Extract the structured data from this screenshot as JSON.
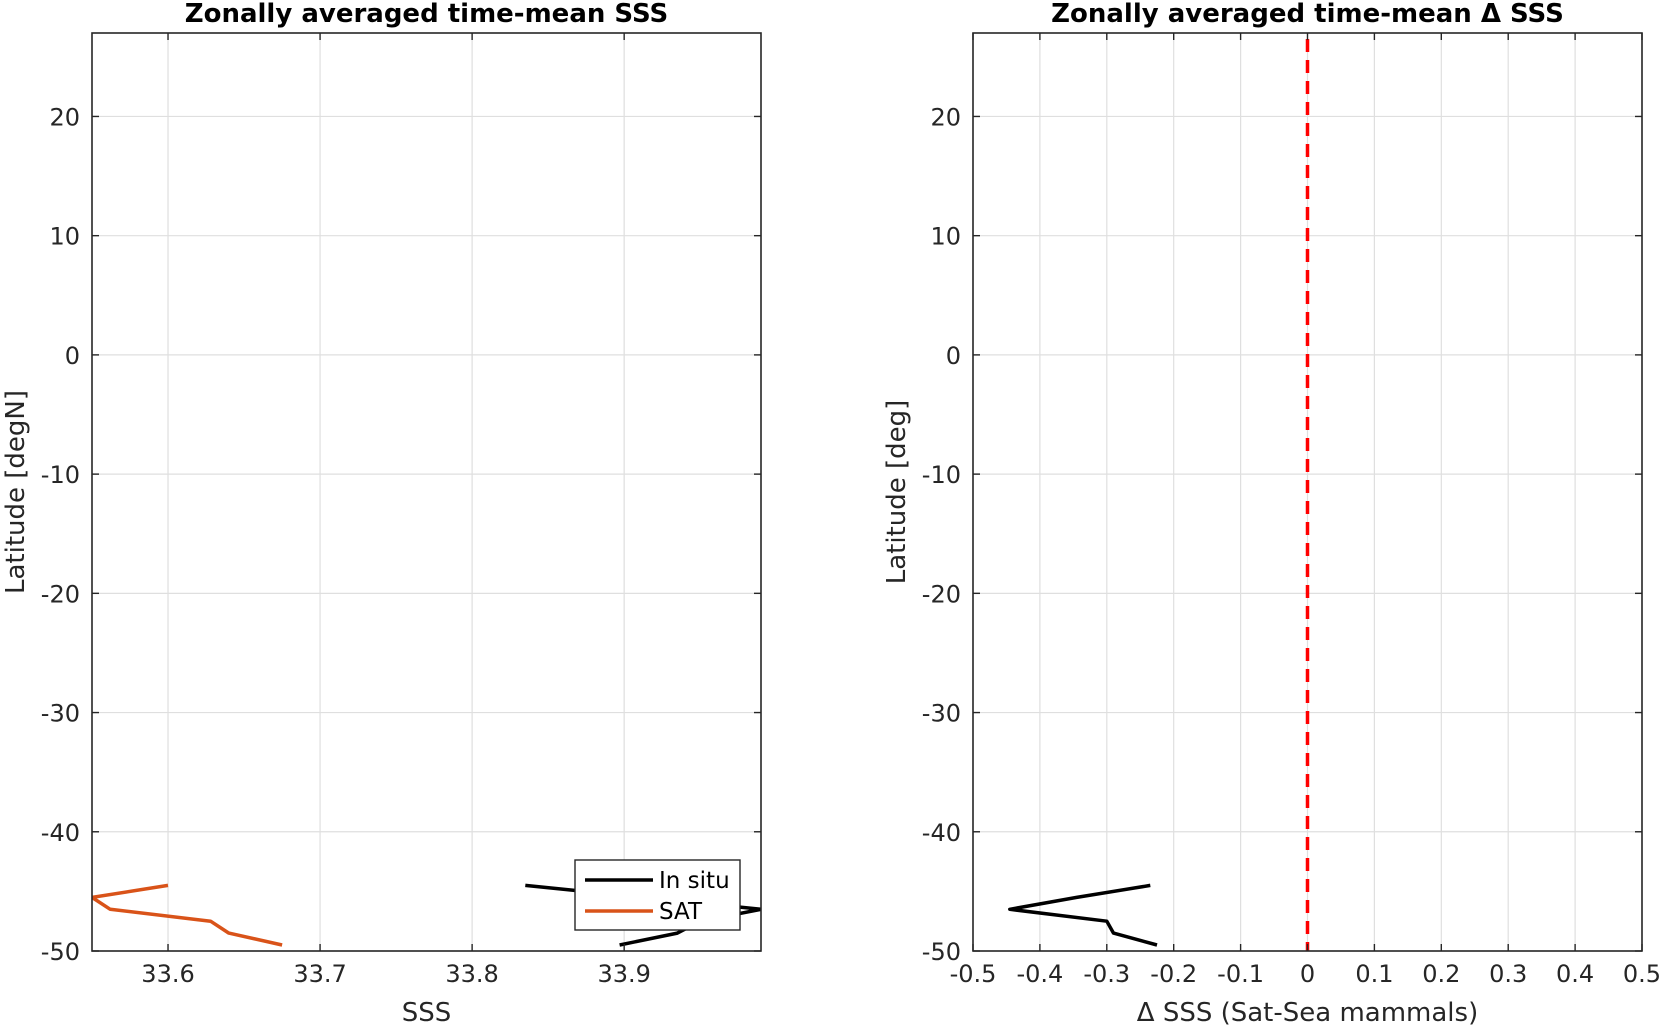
{
  "chart_data": [
    {
      "type": "line",
      "title": "Zonally averaged time-mean SSS",
      "xlabel": "SSS",
      "ylabel": "Latitude [degN]",
      "xlim": [
        33.55,
        33.99
      ],
      "ylim": [
        -50,
        27
      ],
      "xticks": [
        "33.6",
        "33.7",
        "33.8",
        "33.9"
      ],
      "xtick_values": [
        33.6,
        33.7,
        33.8,
        33.9
      ],
      "yticks": [
        "-50",
        "-40",
        "-30",
        "-20",
        "-10",
        "0",
        "10",
        "20"
      ],
      "ytick_values": [
        -50,
        -40,
        -30,
        -20,
        -10,
        0,
        10,
        20
      ],
      "grid": true,
      "legend": {
        "location": "bottom-right",
        "entries": [
          "In situ",
          "SAT"
        ]
      },
      "series": [
        {
          "name": "In situ",
          "color": "#000000",
          "points": [
            [
              33.835,
              -44.5
            ],
            [
              33.99,
              -46.5
            ],
            [
              33.95,
              -47.5
            ],
            [
              33.935,
              -48.5
            ],
            [
              33.897,
              -49.5
            ]
          ]
        },
        {
          "name": "SAT",
          "color": "#D95319",
          "points": [
            [
              33.6,
              -44.5
            ],
            [
              33.55,
              -45.5
            ],
            [
              33.562,
              -46.5
            ],
            [
              33.628,
              -47.5
            ],
            [
              33.64,
              -48.5
            ],
            [
              33.675,
              -49.5
            ]
          ]
        }
      ]
    },
    {
      "type": "line",
      "title": "Zonally averaged time-mean Δ SSS",
      "xlabel": "Δ SSS (Sat-Sea mammals)",
      "ylabel": "Latitude [deg]",
      "xlim": [
        -0.5,
        0.5
      ],
      "ylim": [
        -50,
        27
      ],
      "xticks": [
        "-0.5",
        "-0.4",
        "-0.3",
        "-0.2",
        "-0.1",
        "0",
        "0.1",
        "0.2",
        "0.3",
        "0.4",
        "0.5"
      ],
      "xtick_values": [
        -0.5,
        -0.4,
        -0.3,
        -0.2,
        -0.1,
        0,
        0.1,
        0.2,
        0.3,
        0.4,
        0.5
      ],
      "yticks": [
        "-50",
        "-40",
        "-30",
        "-20",
        "-10",
        "0",
        "10",
        "20"
      ],
      "ytick_values": [
        -50,
        -40,
        -30,
        -20,
        -10,
        0,
        10,
        20
      ],
      "grid": true,
      "reference_line": {
        "x": 0,
        "color": "#FF0000",
        "style": "dashed"
      },
      "series": [
        {
          "color": "#000000",
          "points": [
            [
              -0.235,
              -44.5
            ],
            [
              -0.345,
              -45.5
            ],
            [
              -0.445,
              -46.5
            ],
            [
              -0.3,
              -47.5
            ],
            [
              -0.29,
              -48.5
            ],
            [
              -0.225,
              -49.5
            ]
          ]
        }
      ]
    }
  ]
}
